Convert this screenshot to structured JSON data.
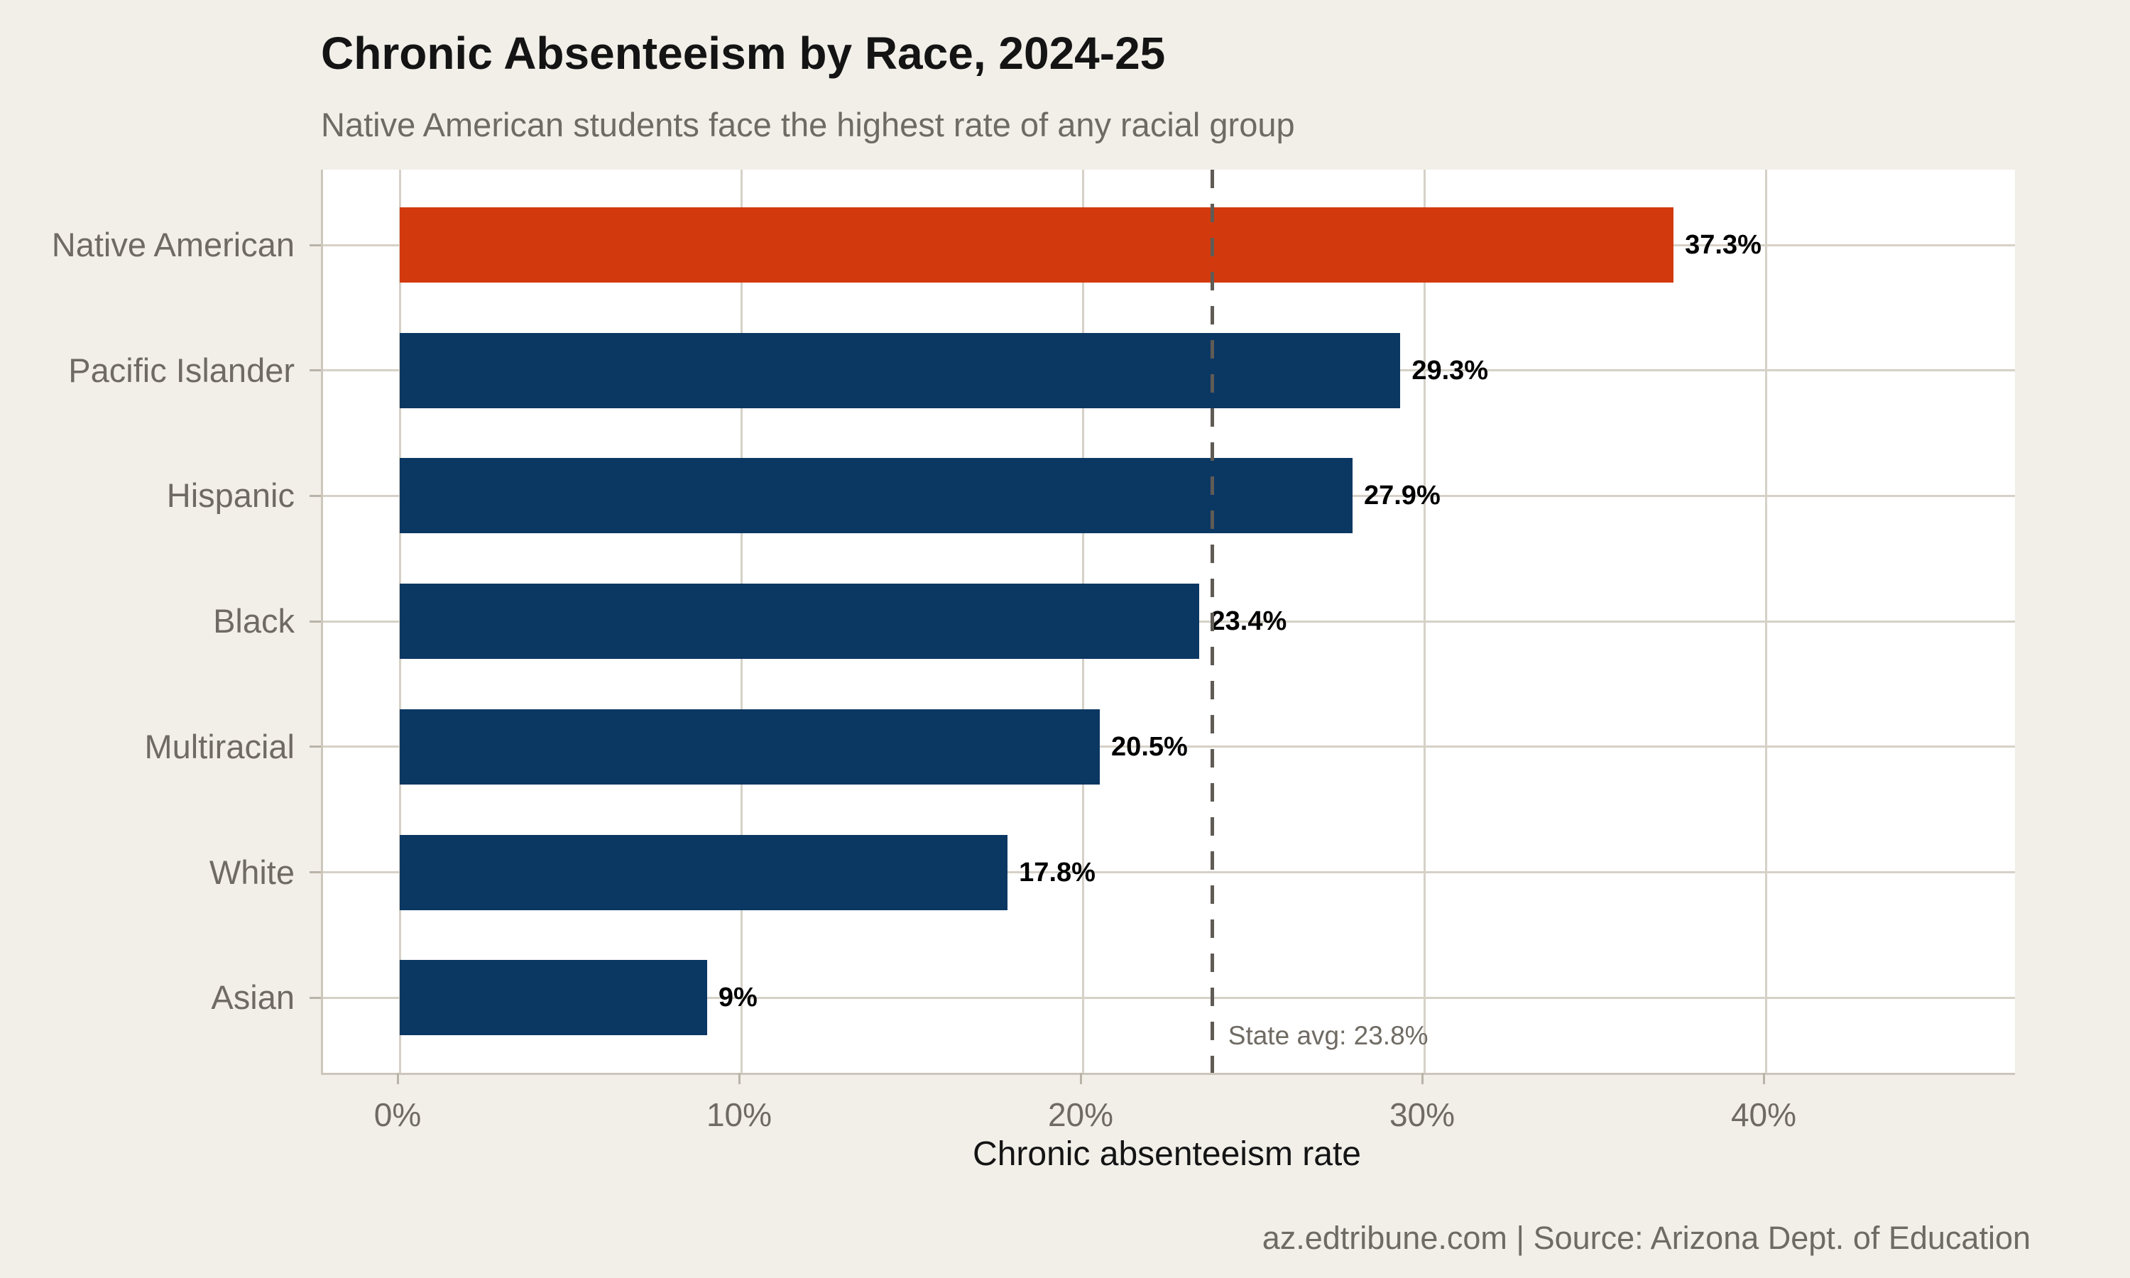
{
  "chart_data": {
    "type": "bar",
    "orientation": "horizontal",
    "title": "Chronic Absenteeism by Race, 2024-25",
    "subtitle": "Native American students face the highest rate of any racial group",
    "xlabel": "Chronic absenteeism rate",
    "categories": [
      "Native American",
      "Pacific Islander",
      "Hispanic",
      "Black",
      "Multiracial",
      "White",
      "Asian"
    ],
    "values": [
      37.3,
      29.3,
      27.9,
      23.4,
      20.5,
      17.8,
      9
    ],
    "value_labels": [
      "37.3%",
      "29.3%",
      "27.9%",
      "23.4%",
      "20.5%",
      "17.8%",
      "9%"
    ],
    "highlight_index": 0,
    "xlim": [
      0,
      47.3
    ],
    "xticks": [
      0,
      10,
      20,
      30,
      40
    ],
    "xtick_labels": [
      "0%",
      "10%",
      "20%",
      "30%",
      "40%"
    ],
    "grid": true,
    "legend": false,
    "reference_line": {
      "value": 23.8,
      "label": "State avg: 23.8%"
    },
    "colors": {
      "background": "#f2efe9",
      "panel": "#ffffff",
      "bar": "#0b3763",
      "highlight": "#d23a0e",
      "grid": "#d6d1c7",
      "axis_line": "#ccc6bb",
      "tick": "#b9b3a8",
      "axis_text": "#6f6b64",
      "title_text": "#141414",
      "subtitle_text": "#6e6a64",
      "value_text": "#000000",
      "reference_line": "#5f5b55"
    }
  },
  "footer": {
    "text": "az.edtribune.com | Source: Arizona Dept. of Education"
  }
}
